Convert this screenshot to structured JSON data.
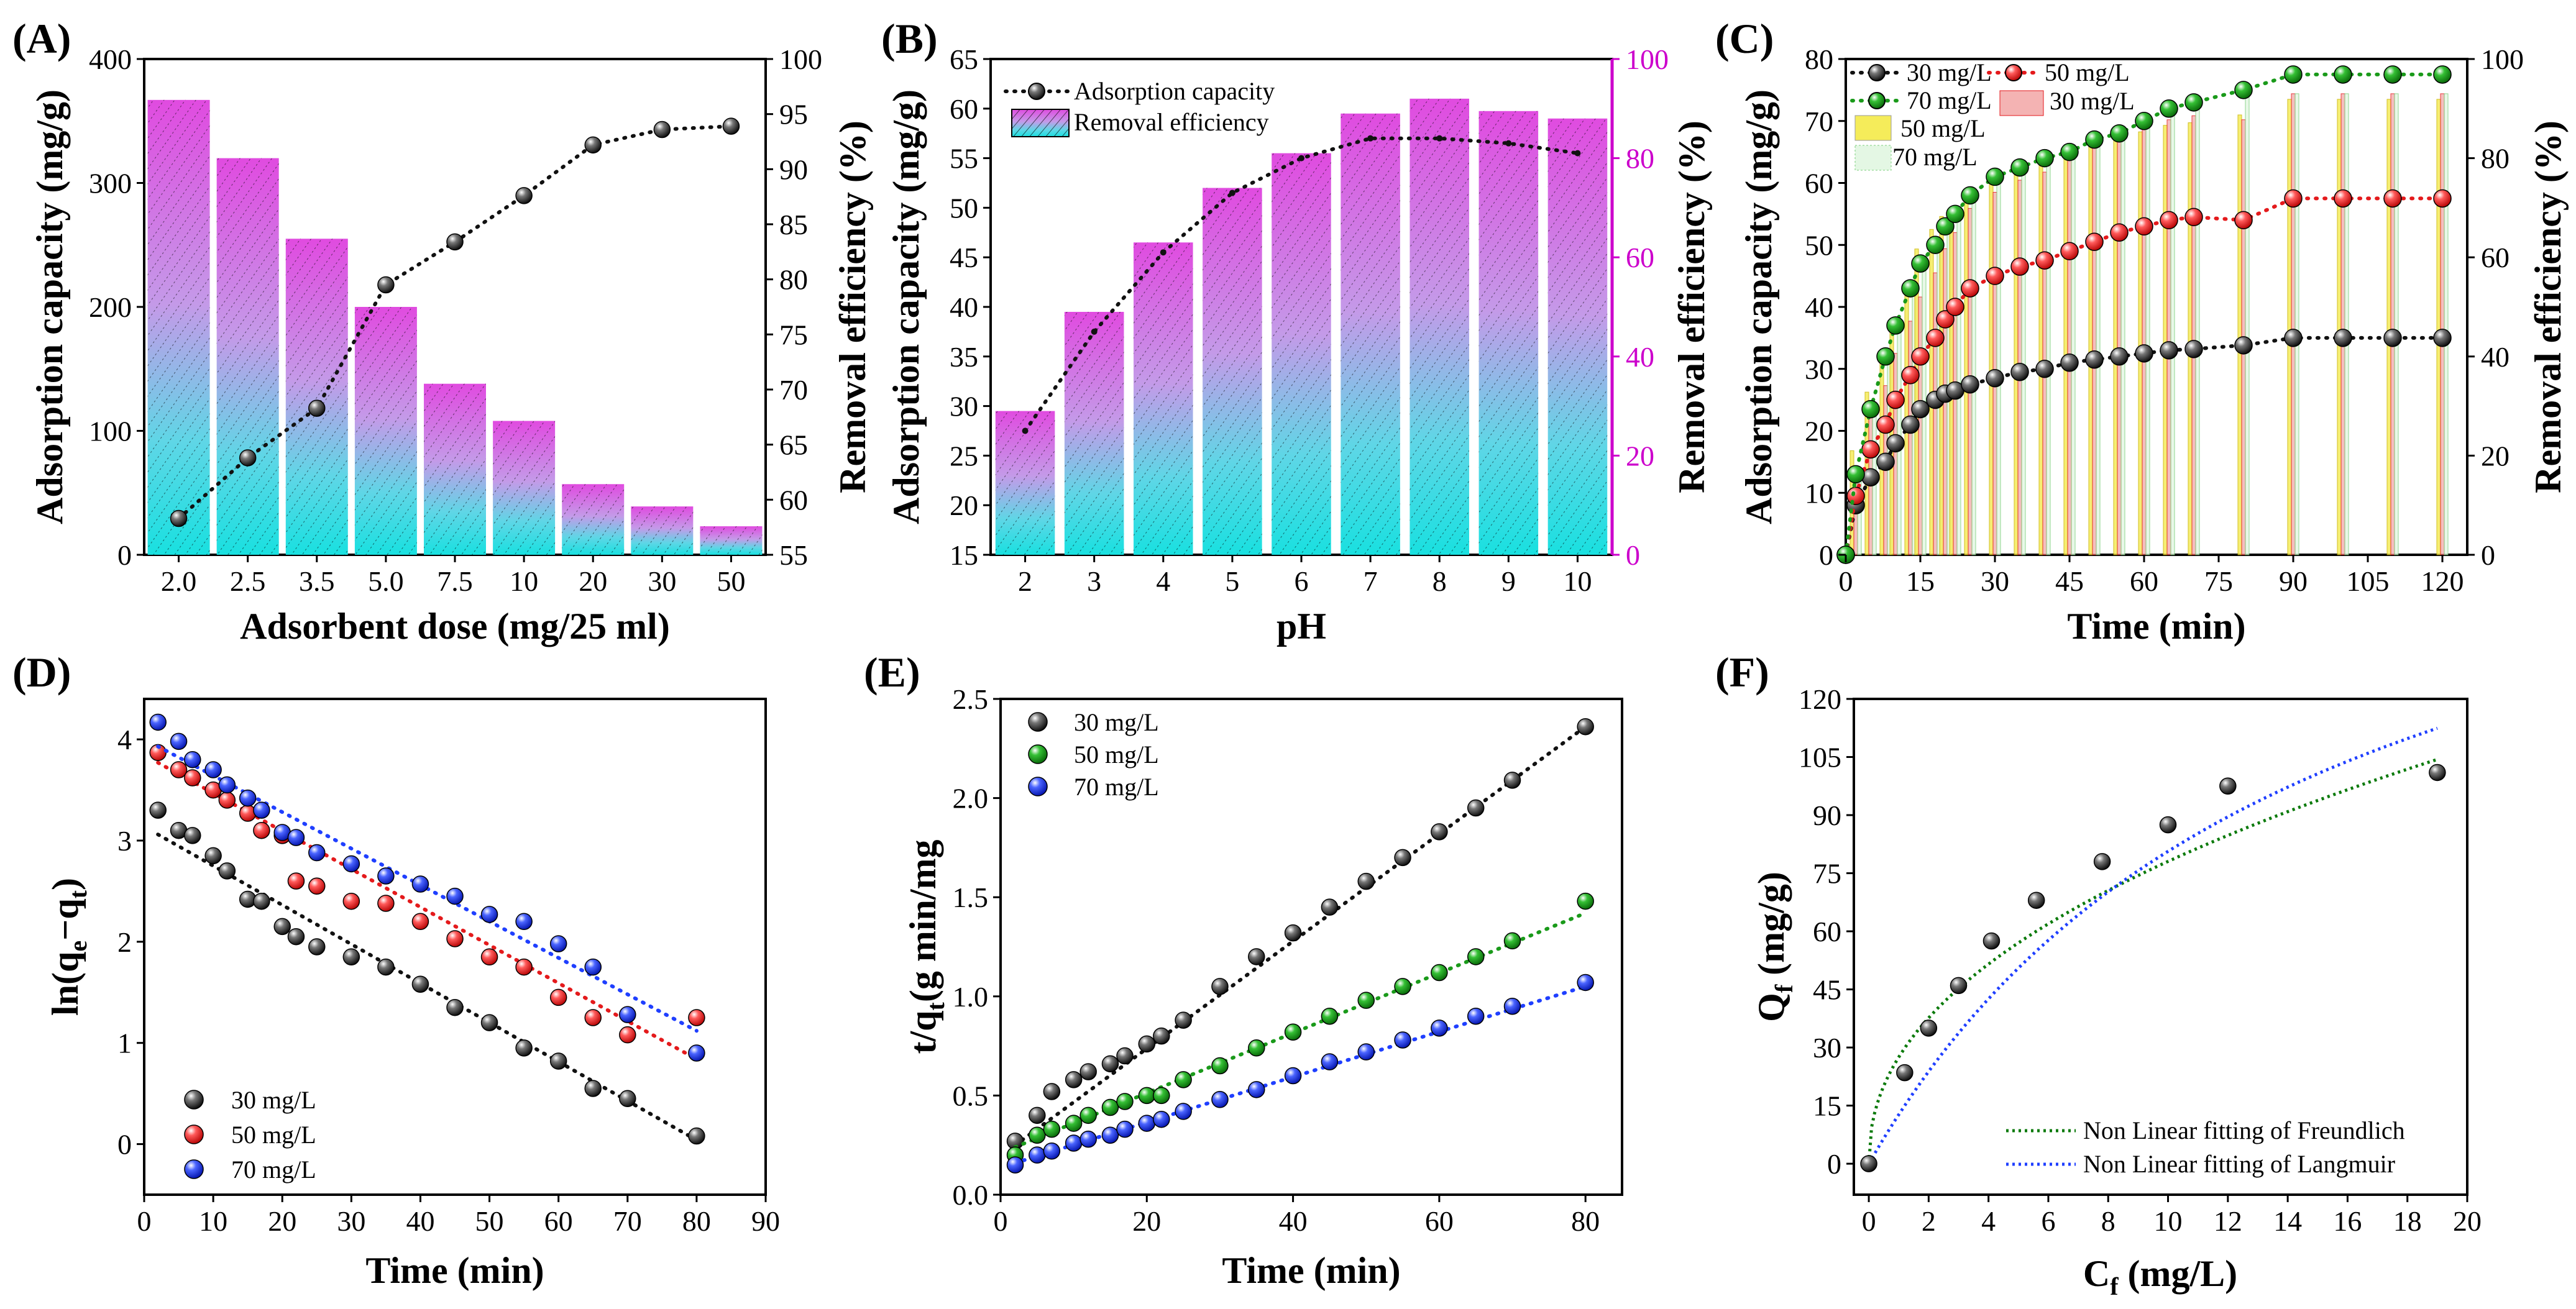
{
  "colors": {
    "black": "#111111",
    "red": "#e41a1c",
    "green": "#1a9a1a",
    "blue": "#1f3fff",
    "magenta": "#cc00cc",
    "cyan": "#19d9d9",
    "pink": "#e04be0",
    "darkgreen": "#0b7a0b"
  },
  "chart_data": [
    {
      "id": "A",
      "panel_label": "(A)",
      "type": "bar+line",
      "xlabel": "Adsorbent dose (mg/25 ml)",
      "ylabel": "Adsorption capacity (mg/g)",
      "y2label": "Removal efficiency (%)",
      "categories": [
        "2.0",
        "2.5",
        "3.5",
        "5.0",
        "7.5",
        "10",
        "20",
        "30",
        "50"
      ],
      "ylim": [
        0,
        400
      ],
      "yticks": [
        "0",
        "100",
        "200",
        "300",
        "400"
      ],
      "y2lim": [
        55,
        100
      ],
      "y2ticks": [
        "55",
        "60",
        "65",
        "70",
        "75",
        "80",
        "85",
        "90",
        "95",
        "100"
      ],
      "bars": {
        "name": "Adsorption capacity",
        "values": [
          367,
          320,
          255,
          200,
          138,
          108,
          57,
          39,
          23
        ]
      },
      "line": {
        "name": "Removal efficiency",
        "values": [
          58.3,
          63.8,
          68.3,
          79.5,
          83.4,
          87.6,
          92.2,
          93.6,
          93.9
        ]
      }
    },
    {
      "id": "B",
      "panel_label": "(B)",
      "type": "bar+line",
      "xlabel": "pH",
      "ylabel": "Adsorption capacity (mg/g)",
      "y2label": "Removal efficiency (%)",
      "categories": [
        "2",
        "3",
        "4",
        "5",
        "6",
        "7",
        "8",
        "9",
        "10"
      ],
      "ylim": [
        15,
        65
      ],
      "yticks": [
        "15",
        "20",
        "25",
        "30",
        "35",
        "40",
        "45",
        "50",
        "55",
        "60",
        "65"
      ],
      "y2lim": [
        0,
        100
      ],
      "y2ticks": [
        "0",
        "20",
        "40",
        "60",
        "80",
        "100"
      ],
      "bars": {
        "name": "Removal efficiency",
        "values": [
          29,
          49,
          63,
          74,
          81,
          89,
          92,
          89.5,
          88
        ]
      },
      "line": {
        "name": "Adsorption capacity",
        "values": [
          27.5,
          37.5,
          45.5,
          51.5,
          55,
          57,
          57,
          56.5,
          55.5
        ]
      },
      "legend": [
        "Adsorption capacity",
        "Removal efficiency"
      ]
    },
    {
      "id": "C",
      "panel_label": "(C)",
      "type": "line+bar",
      "xlabel": "Time (min)",
      "ylabel": "Adsorption capacity (mg/g)",
      "y2label": "Removal efficiency (%)",
      "xlim": [
        0,
        125
      ],
      "xticks": [
        "0",
        "15",
        "30",
        "45",
        "60",
        "75",
        "90",
        "105",
        "120"
      ],
      "ylim": [
        0,
        80
      ],
      "yticks": [
        "0",
        "10",
        "20",
        "30",
        "40",
        "50",
        "60",
        "70",
        "80"
      ],
      "y2lim": [
        0,
        100
      ],
      "y2ticks": [
        "0",
        "20",
        "40",
        "60",
        "80",
        "100"
      ],
      "x": [
        0,
        2,
        5,
        8,
        10,
        13,
        15,
        18,
        20,
        22,
        25,
        30,
        35,
        40,
        45,
        50,
        55,
        60,
        65,
        70,
        80,
        90,
        100,
        110,
        120
      ],
      "series": [
        {
          "name": "30 mg/L",
          "color": "black",
          "values": [
            0,
            8,
            12.5,
            15,
            18,
            21,
            23.5,
            25,
            26,
            26.5,
            27.5,
            28.5,
            29.5,
            30,
            31,
            31.5,
            32,
            32.5,
            33,
            33.2,
            33.8,
            35,
            35,
            35,
            35
          ]
        },
        {
          "name": "50 mg/L",
          "color": "red",
          "values": [
            0,
            9.5,
            17,
            21,
            25,
            29,
            32,
            35,
            38,
            40,
            43,
            45,
            46.5,
            47.5,
            49,
            50.5,
            52,
            53,
            54,
            54.5,
            54,
            57.5,
            57.5,
            57.5,
            57.5
          ]
        },
        {
          "name": "70 mg/L",
          "color": "green",
          "values": [
            0,
            13,
            23.5,
            32,
            37,
            43,
            47,
            50,
            53,
            55,
            58,
            61,
            62.5,
            64,
            65,
            67,
            68,
            70,
            72,
            73,
            75,
            77.5,
            77.5,
            77.5,
            77.5
          ]
        }
      ],
      "legend": [
        "30 mg/L",
        "50 mg/L",
        "70 mg/L",
        "50 mg/L",
        "30 mg/L",
        "70 mg/L"
      ]
    },
    {
      "id": "D",
      "panel_label": "(D)",
      "type": "scatter+fit",
      "xlabel": "Time (min)",
      "ylabel_main": "ln(q",
      "ylabel_sub1": "e",
      "ylabel_mid": "−q",
      "ylabel_sub2": "t",
      "ylabel_end": ")",
      "xlim": [
        0,
        90
      ],
      "xticks": [
        "0",
        "10",
        "20",
        "30",
        "40",
        "50",
        "60",
        "70",
        "80",
        "90"
      ],
      "ylim": [
        -0.5,
        4.4
      ],
      "yticks": [
        "0",
        "1",
        "2",
        "3",
        "4"
      ],
      "x": [
        2,
        5,
        7,
        10,
        12,
        15,
        17,
        20,
        22,
        25,
        30,
        35,
        40,
        45,
        50,
        55,
        60,
        65,
        70,
        80
      ],
      "series": [
        {
          "name": "30 mg/L",
          "color": "black",
          "values": [
            3.3,
            3.1,
            3.05,
            2.85,
            2.7,
            2.42,
            2.4,
            2.15,
            2.05,
            1.95,
            1.85,
            1.75,
            1.58,
            1.35,
            1.2,
            0.95,
            0.82,
            0.55,
            0.45,
            0.08
          ],
          "fit": [
            3.06,
            0.04
          ]
        },
        {
          "name": "50 mg/L",
          "color": "red",
          "values": [
            3.87,
            3.7,
            3.62,
            3.5,
            3.4,
            3.27,
            3.1,
            3.05,
            2.6,
            2.55,
            2.4,
            2.38,
            2.2,
            2.03,
            1.85,
            1.75,
            1.45,
            1.25,
            1.08,
            1.25
          ],
          "fit": [
            3.77,
            0.84
          ]
        },
        {
          "name": "70 mg/L",
          "color": "blue",
          "values": [
            4.17,
            3.98,
            3.8,
            3.7,
            3.55,
            3.42,
            3.3,
            3.08,
            3.03,
            2.88,
            2.77,
            2.65,
            2.57,
            2.45,
            2.27,
            2.2,
            1.98,
            1.75,
            1.28,
            0.9
          ],
          "fit": [
            3.93,
            1.12
          ]
        }
      ]
    },
    {
      "id": "E",
      "panel_label": "(E)",
      "type": "scatter+fit",
      "xlabel": "Time (min)",
      "ylabel_main": "t/q",
      "ylabel_sub": "t",
      "ylabel_end": "(g min/mg",
      "xlim": [
        0,
        85
      ],
      "xticks": [
        "0",
        "20",
        "40",
        "60",
        "80"
      ],
      "ylim": [
        0,
        2.5
      ],
      "yticks": [
        "0.0",
        "0.5",
        "1.0",
        "1.5",
        "2.0",
        "2.5"
      ],
      "x": [
        2,
        5,
        7,
        10,
        12,
        15,
        17,
        20,
        22,
        25,
        30,
        35,
        40,
        45,
        50,
        55,
        60,
        65,
        70,
        80
      ],
      "series": [
        {
          "name": "30 mg/L",
          "color": "black",
          "values": [
            0.27,
            0.4,
            0.52,
            0.58,
            0.62,
            0.66,
            0.7,
            0.76,
            0.8,
            0.88,
            1.05,
            1.2,
            1.32,
            1.45,
            1.58,
            1.7,
            1.83,
            1.95,
            2.09,
            2.36
          ],
          "fit": [
            0.25,
            2.36
          ]
        },
        {
          "name": "50 mg/L",
          "color": "green",
          "values": [
            0.2,
            0.3,
            0.33,
            0.36,
            0.4,
            0.44,
            0.47,
            0.5,
            0.5,
            0.58,
            0.65,
            0.74,
            0.82,
            0.9,
            0.98,
            1.05,
            1.12,
            1.2,
            1.28,
            1.48
          ],
          "fit": [
            0.24,
            1.42
          ]
        },
        {
          "name": "70 mg/L",
          "color": "blue",
          "values": [
            0.15,
            0.2,
            0.22,
            0.26,
            0.28,
            0.3,
            0.33,
            0.36,
            0.38,
            0.42,
            0.48,
            0.53,
            0.6,
            0.67,
            0.72,
            0.78,
            0.84,
            0.9,
            0.95,
            1.07
          ],
          "fit": [
            0.16,
            1.05
          ]
        }
      ]
    },
    {
      "id": "F",
      "panel_label": "(F)",
      "type": "scatter+fit",
      "xlabel_main": "C",
      "xlabel_sub": "f",
      "xlabel_end": " (mg/L)",
      "ylabel_main": "Q",
      "ylabel_sub": "f",
      "ylabel_end": " (mg/g)",
      "xlim": [
        -0.5,
        20
      ],
      "xticks": [
        "0",
        "2",
        "4",
        "6",
        "8",
        "10",
        "12",
        "14",
        "16",
        "18",
        "20"
      ],
      "ylim": [
        -8,
        120
      ],
      "yticks": [
        "0",
        "15",
        "30",
        "45",
        "60",
        "75",
        "90",
        "105",
        "120"
      ],
      "points": {
        "x": [
          0,
          1.2,
          2,
          3,
          4.1,
          5.6,
          7.8,
          10,
          12,
          19
        ],
        "y": [
          0,
          23.5,
          35,
          46,
          57.5,
          68,
          78,
          87.5,
          97.5,
          101
        ]
      },
      "fits": [
        {
          "name": "Non Linear fitting of Freundlich",
          "color": "darkgreen",
          "model": "freundlich"
        },
        {
          "name": "Non Linear fitting of Langmuir",
          "color": "blue",
          "model": "langmuir"
        }
      ]
    }
  ]
}
